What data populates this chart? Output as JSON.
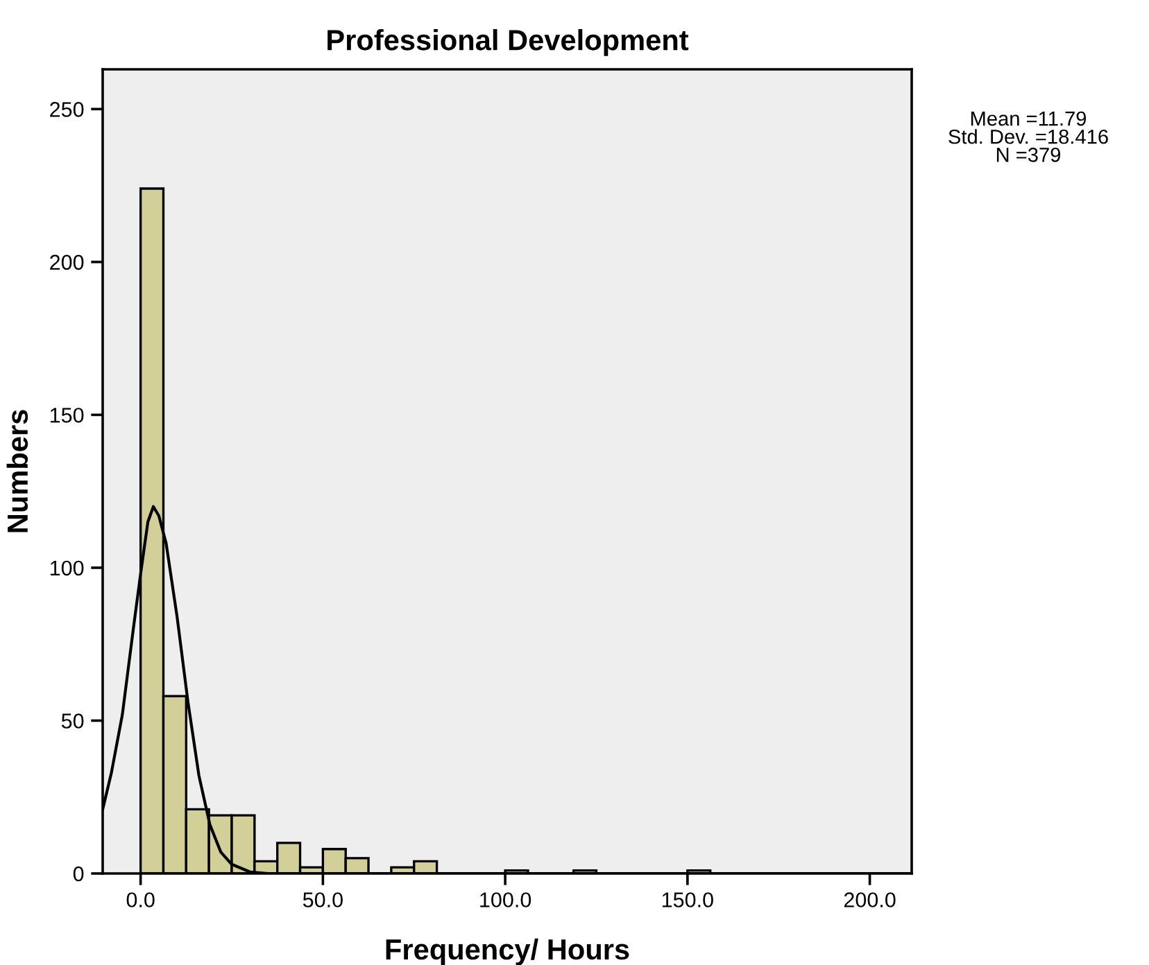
{
  "chart_data": {
    "type": "histogram",
    "title": "Professional Development",
    "xlabel": "Frequency/ Hours",
    "ylabel": "Numbers",
    "bins": [
      0,
      6.25,
      12.5,
      18.75,
      25,
      31.25,
      37.5,
      43.75,
      50,
      56.25,
      62.5,
      68.75,
      75,
      81.25,
      87.5,
      93.75,
      100,
      106.25,
      112.5,
      118.75,
      125,
      131.25,
      137.5,
      143.75,
      150,
      156.25,
      162.5,
      168.75,
      175,
      181.25,
      187.5,
      193.75,
      200
    ],
    "values": [
      224,
      58,
      21,
      19,
      19,
      4,
      10,
      2,
      8,
      5,
      0,
      2,
      4,
      0,
      0,
      0,
      1,
      0,
      0,
      1,
      0,
      0,
      0,
      0,
      1,
      0,
      0,
      0,
      0,
      0,
      0,
      0
    ],
    "color": "#d3cf98",
    "series": [
      {
        "type": "line",
        "color": "#000000",
        "x": [
          -10.4,
          -8,
          -5,
          -2,
          0,
          2,
          3.5,
          5,
          7,
          10,
          13,
          16,
          19,
          22,
          25,
          30,
          35,
          211.5
        ],
        "values": [
          21,
          33,
          52,
          80,
          98,
          115,
          120,
          117,
          108,
          84,
          56,
          32,
          16,
          7,
          3,
          0.5,
          0,
          0
        ]
      }
    ],
    "xlim": [
      -10.4,
      211.5
    ],
    "ylim": [
      0,
      263
    ],
    "xticks": [
      {
        "value": 0,
        "label": "0.0"
      },
      {
        "value": 50,
        "label": "50.0"
      },
      {
        "value": 100,
        "label": "100.0"
      },
      {
        "value": 150,
        "label": "150.0"
      },
      {
        "value": 200,
        "label": "200.0"
      }
    ],
    "yticks": [
      0,
      50,
      100,
      150,
      200,
      250
    ],
    "annotations": [
      "Mean =11.79\nStd. Dev. =18.416\nN =379"
    ]
  }
}
